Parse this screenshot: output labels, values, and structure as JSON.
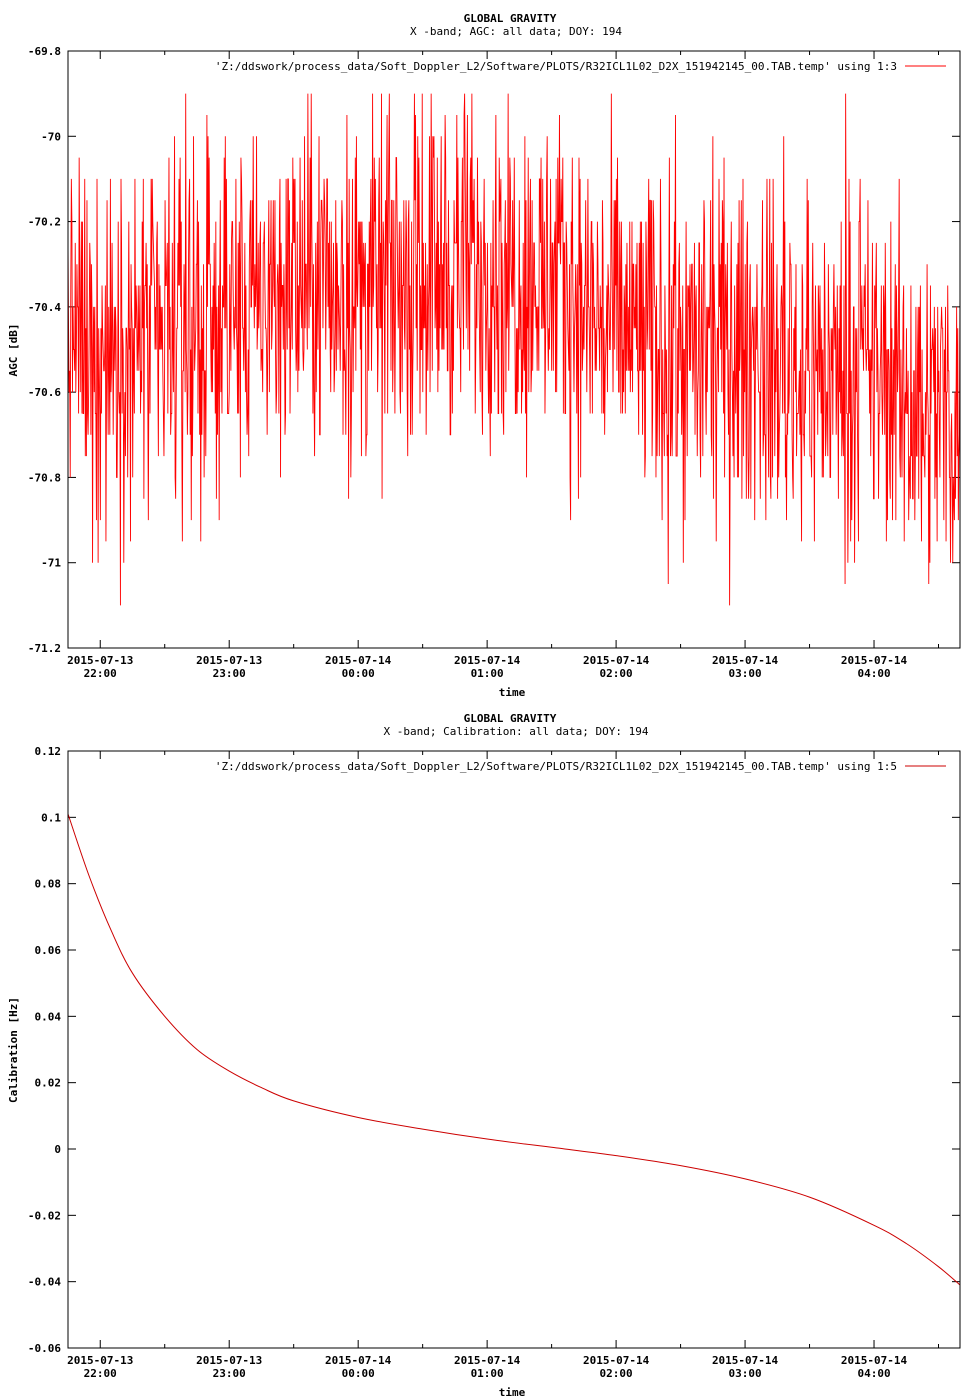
{
  "chart_data": [
    {
      "type": "line",
      "title": "GLOBAL GRAVITY",
      "subtitle": "X -band; AGC: all data; DOY: 194",
      "xlabel": "time",
      "ylabel": "AGC [dB]",
      "ylim": [
        -71.2,
        -69.8
      ],
      "yticks": [
        -69.8,
        -70,
        -70.2,
        -70.4,
        -70.6,
        -70.8,
        -71,
        -71.2
      ],
      "ytick_labels": [
        "-69.8",
        "-70",
        "-70.2",
        "-70.4",
        "-70.6",
        "-70.8",
        "-71",
        "-71.2"
      ],
      "xlim": [
        "2015-07-13T21:45",
        "2015-07-14T04:40"
      ],
      "xticks": [
        "2015-07-13T22:00",
        "2015-07-13T23:00",
        "2015-07-14T00:00",
        "2015-07-14T01:00",
        "2015-07-14T02:00",
        "2015-07-14T03:00",
        "2015-07-14T04:00"
      ],
      "xtick_labels": [
        [
          "2015-07-13",
          "22:00"
        ],
        [
          "2015-07-13",
          "23:00"
        ],
        [
          "2015-07-14",
          "00:00"
        ],
        [
          "2015-07-14",
          "01:00"
        ],
        [
          "2015-07-14",
          "02:00"
        ],
        [
          "2015-07-14",
          "03:00"
        ],
        [
          "2015-07-14",
          "04:00"
        ]
      ],
      "grid": false,
      "legend": "top-right",
      "series": [
        {
          "name": "'Z:/ddswork/process_data/Soft_Doppler_L2/Software/PLOTS/R32ICL1L02_D2X_151942145_00.TAB.temp' using 1:3",
          "color": "#ff0000",
          "trend": {
            "x": [
              "2015-07-13T21:45",
              "2015-07-13T22:00",
              "2015-07-13T22:30",
              "2015-07-13T23:00",
              "2015-07-13T23:30",
              "2015-07-14T00:00",
              "2015-07-14T00:30",
              "2015-07-14T01:00",
              "2015-07-14T01:30",
              "2015-07-14T02:00",
              "2015-07-14T02:30",
              "2015-07-14T03:00",
              "2015-07-14T03:30",
              "2015-07-14T04:00",
              "2015-07-14T04:20",
              "2015-07-14T04:40"
            ],
            "y": [
              -70.45,
              -70.5,
              -70.5,
              -70.42,
              -70.35,
              -70.35,
              -70.32,
              -70.3,
              -70.35,
              -70.45,
              -70.5,
              -70.5,
              -70.55,
              -70.55,
              -70.62,
              -70.65
            ]
          },
          "noise_spread": 0.3,
          "max": -69.9,
          "min": -71.1
        }
      ]
    },
    {
      "type": "line",
      "title": "GLOBAL GRAVITY",
      "subtitle": "X -band; Calibration: all data; DOY: 194",
      "xlabel": "time",
      "ylabel": "Calibration [Hz]",
      "ylim": [
        -0.06,
        0.12
      ],
      "yticks": [
        0.12,
        0.1,
        0.08,
        0.06,
        0.04,
        0.02,
        0,
        -0.02,
        -0.04,
        -0.06
      ],
      "ytick_labels": [
        "0.12",
        "0.1",
        "0.08",
        "0.06",
        "0.04",
        "0.02",
        "0",
        "-0.02",
        "-0.04",
        "-0.06"
      ],
      "xlim": [
        "2015-07-13T21:45",
        "2015-07-14T04:40"
      ],
      "xticks": [
        "2015-07-13T22:00",
        "2015-07-13T23:00",
        "2015-07-14T00:00",
        "2015-07-14T01:00",
        "2015-07-14T02:00",
        "2015-07-14T03:00",
        "2015-07-14T04:00"
      ],
      "xtick_labels": [
        [
          "2015-07-13",
          "22:00"
        ],
        [
          "2015-07-13",
          "23:00"
        ],
        [
          "2015-07-14",
          "00:00"
        ],
        [
          "2015-07-14",
          "01:00"
        ],
        [
          "2015-07-14",
          "02:00"
        ],
        [
          "2015-07-14",
          "03:00"
        ],
        [
          "2015-07-14",
          "04:00"
        ]
      ],
      "grid": false,
      "legend": "top-right",
      "series": [
        {
          "name": "'Z:/ddswork/process_data/Soft_Doppler_L2/Software/PLOTS/R32ICL1L02_D2X_151942145_00.TAB.temp' using 1:5",
          "color": "#cc0000",
          "x": [
            "2015-07-13T21:45",
            "2015-07-13T21:55",
            "2015-07-13T22:05",
            "2015-07-13T22:15",
            "2015-07-13T22:30",
            "2015-07-13T22:45",
            "2015-07-13T23:00",
            "2015-07-13T23:15",
            "2015-07-13T23:30",
            "2015-07-14T00:00",
            "2015-07-14T00:30",
            "2015-07-14T01:00",
            "2015-07-14T01:30",
            "2015-07-14T02:00",
            "2015-07-14T02:30",
            "2015-07-14T03:00",
            "2015-07-14T03:30",
            "2015-07-14T04:00",
            "2015-07-14T04:15",
            "2015-07-14T04:30",
            "2015-07-14T04:40"
          ],
          "values": [
            0.101,
            0.082,
            0.066,
            0.053,
            0.04,
            0.03,
            0.0235,
            0.0185,
            0.0145,
            0.0095,
            0.006,
            0.003,
            0.0005,
            -0.002,
            -0.005,
            -0.009,
            -0.0145,
            -0.023,
            -0.0285,
            -0.0355,
            -0.041
          ]
        }
      ]
    }
  ]
}
